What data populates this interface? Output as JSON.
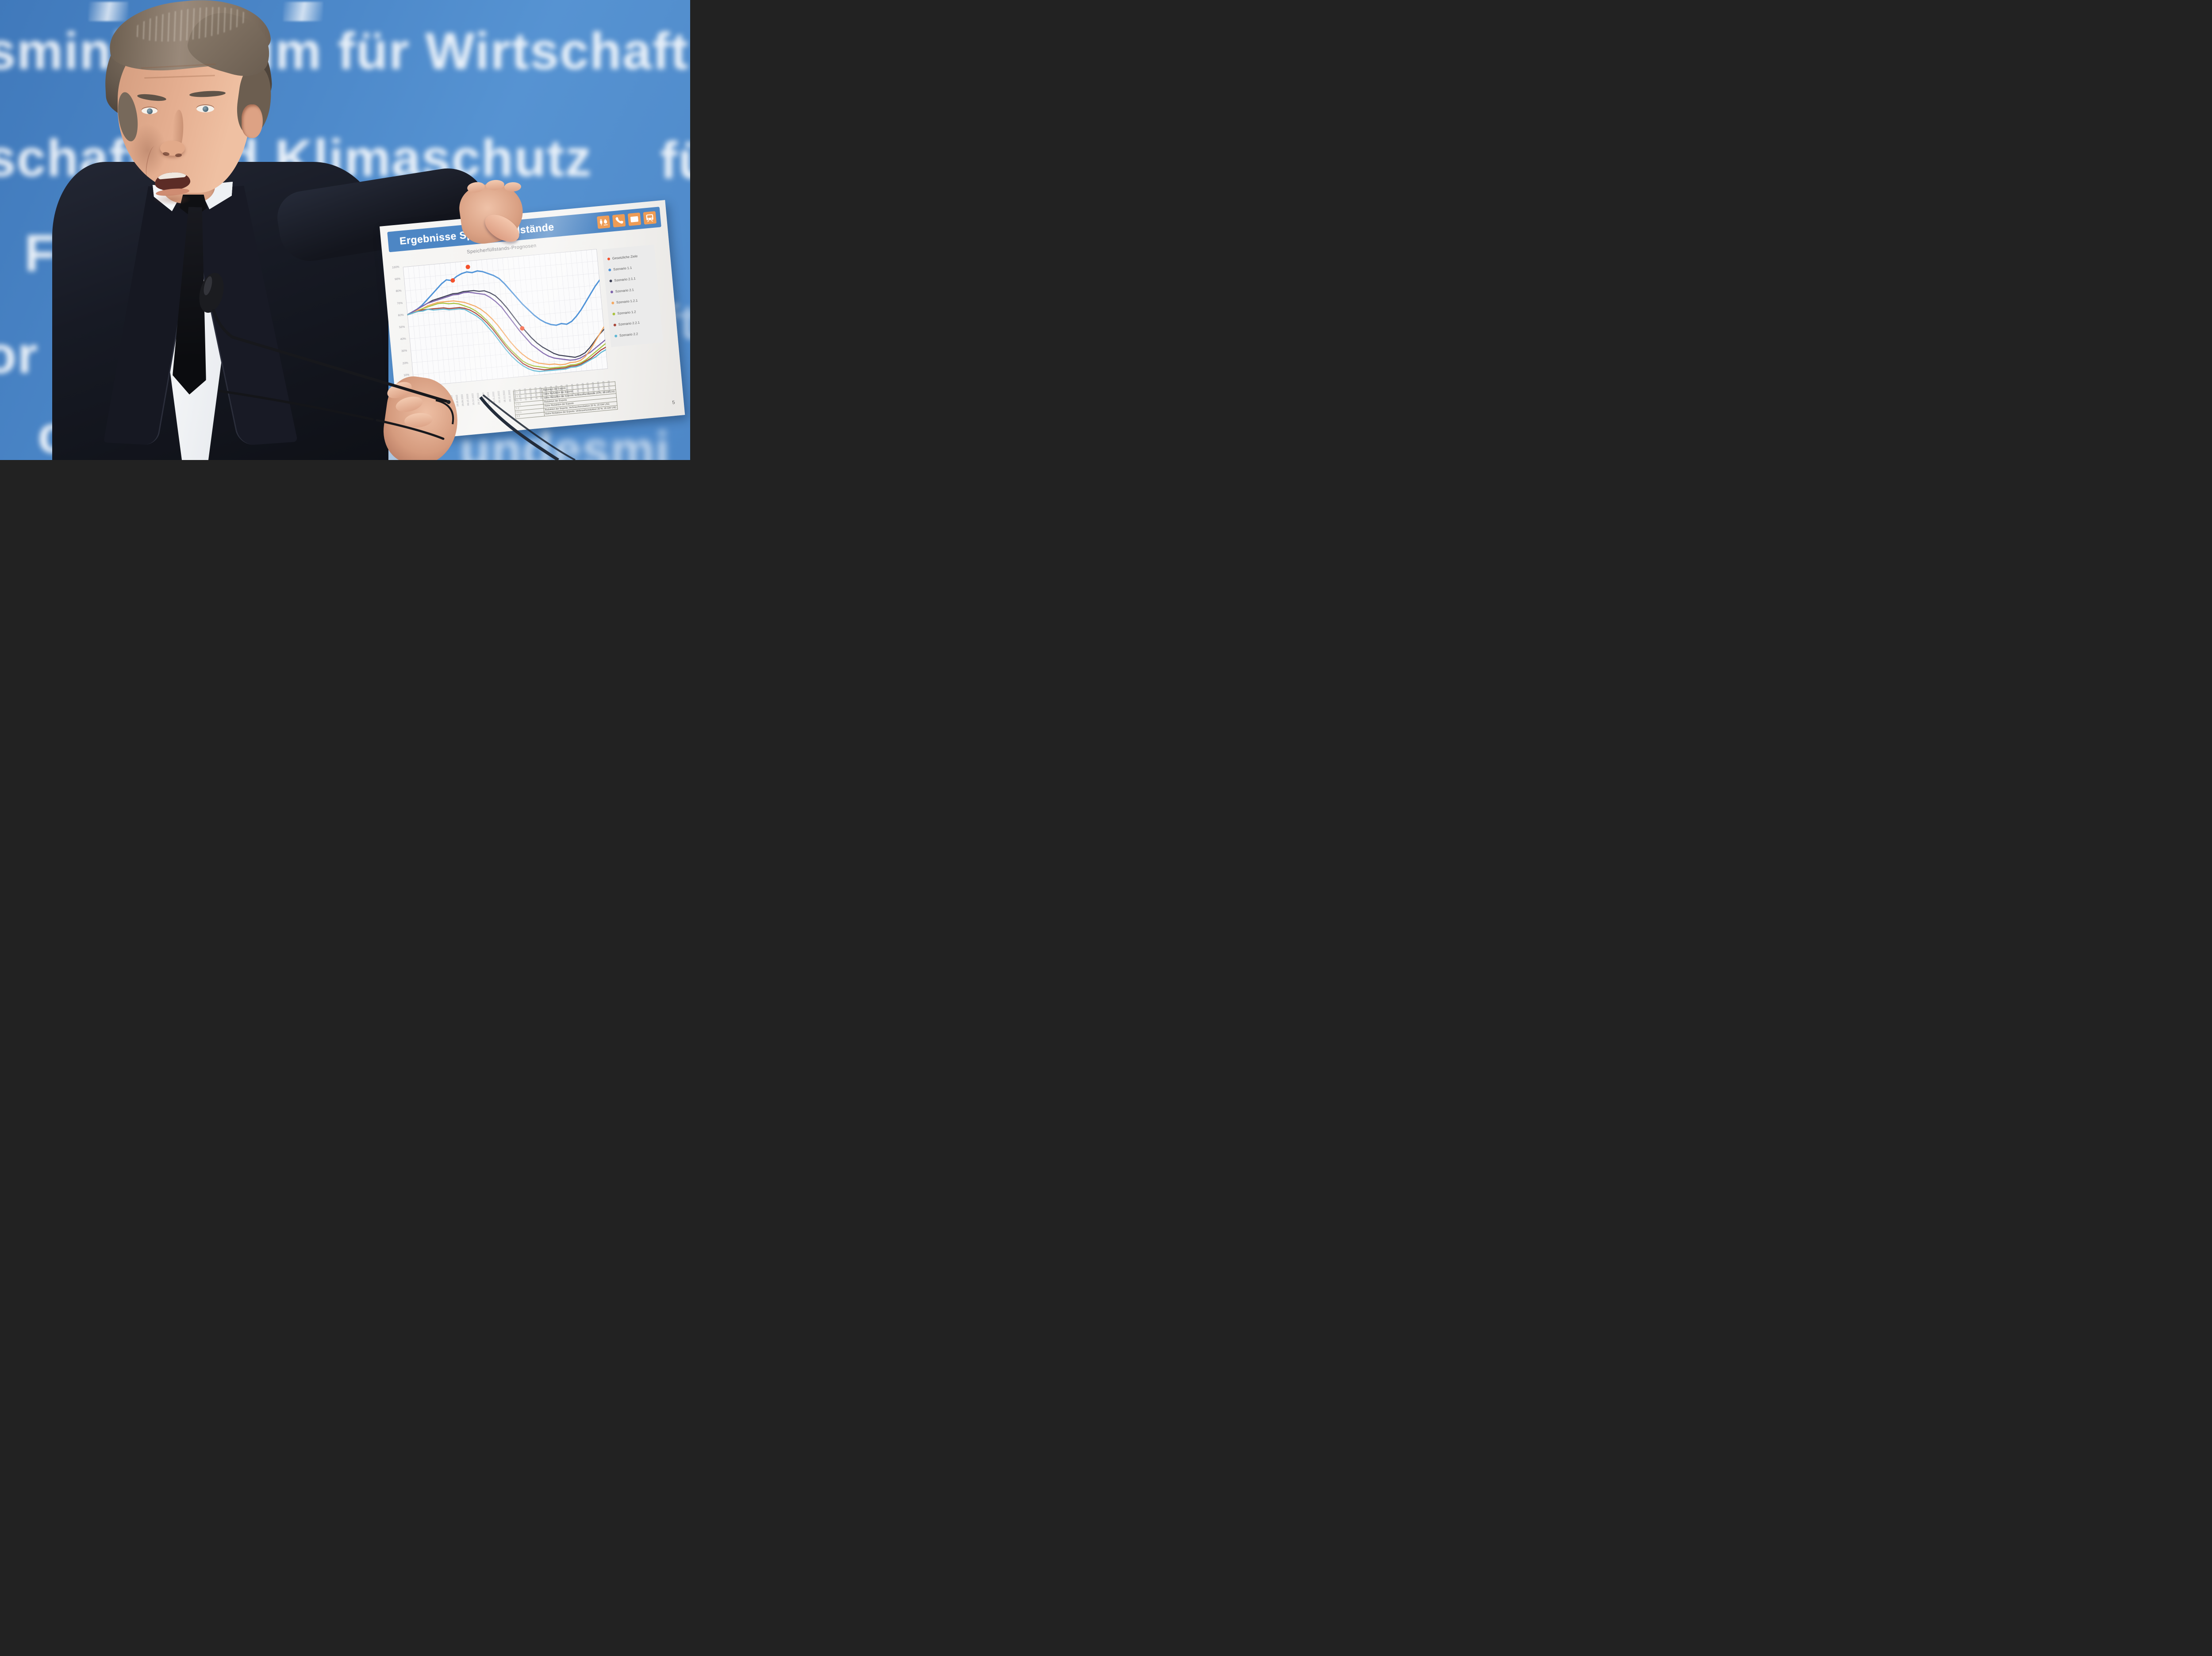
{
  "scene": {
    "backdrop_fragments": {
      "row1": "sministerium für Wirtschaft",
      "row2": "schaft und Klimaschutz",
      "row3": "Fe",
      "row4": "or",
      "row5": "ction",
      "right1": "für",
      "right2": "ft",
      "bottom_right": "undesmi"
    },
    "colors": {
      "wall_blue": "#4d89ca",
      "banner_blue": "#4d86c4",
      "icon_orange": "#ee9c55",
      "target_red": "#f4512c"
    }
  },
  "poster": {
    "title": "Ergebnisse Speicherfüllstände",
    "icons": [
      "plug-flame-icon",
      "phone-icon",
      "envelope-icon",
      "train-icon"
    ],
    "page_number": "5",
    "table": {
      "rows": [
        {
          "id": "1.1",
          "text": "Reduktion der Exporte"
        },
        {
          "id": "2.1.1",
          "text": "Keine Reduktion der Exporte"
        },
        {
          "id": "2.1",
          "text": "Keine Reduktion der Exporte; Verbrauchsreduktion 20 %; 16 GW LNG"
        },
        {
          "id": "1.2.1",
          "text": "Reduktion der Exporte"
        },
        {
          "id": "1.2",
          "text": "Keine Reduktion der Exporte"
        },
        {
          "id": "2.2.1",
          "text": "Reduktion der Exporte; Verbrauchsreduktion 20 %; 16 GW LNG"
        },
        {
          "id": "2.2",
          "text": "Keine Reduktion der Exporte; Verbrauchsreduktion 20 %; 16 GW LNG"
        }
      ]
    }
  },
  "chart_data": {
    "type": "line",
    "title": "Speicherfüllstands-Prognosen",
    "xlabel": "",
    "ylabel": "",
    "ylim": [
      0,
      100
    ],
    "grid": true,
    "legend_position": "right",
    "y_ticks": [
      "100%",
      "90%",
      "80%",
      "70%",
      "60%",
      "50%",
      "40%",
      "30%",
      "20%",
      "10%",
      "0%"
    ],
    "x": [
      "01.07.2022",
      "11.07.2022",
      "21.07.2022",
      "31.07.2022",
      "10.08.2022",
      "20.08.2022",
      "30.08.2022",
      "09.09.2022",
      "19.09.2022",
      "29.09.2022",
      "09.10.2022",
      "19.10.2022",
      "29.10.2022",
      "08.11.2022",
      "18.11.2022",
      "28.11.2022",
      "08.12.2022",
      "18.12.2022",
      "28.12.2022",
      "07.01.2023",
      "17.01.2023",
      "27.01.2023",
      "06.02.2023",
      "16.02.2023",
      "26.02.2023",
      "08.03.2023",
      "18.03.2023",
      "28.03.2023",
      "07.04.2023",
      "17.04.2023",
      "27.04.2023",
      "07.05.2023",
      "17.05.2023",
      "27.05.2023",
      "06.06.2023",
      "16.06.2023",
      "26.06.2023",
      "06.07.2023"
    ],
    "series": [
      {
        "name": "Szenario 1.1",
        "color": "#4f93d8",
        "width": 3,
        "values": [
          60,
          62,
          64,
          67,
          71,
          75,
          79,
          83,
          86,
          85,
          88,
          90,
          91,
          90,
          91,
          90,
          88,
          86,
          83,
          78,
          72,
          66,
          60,
          55,
          50,
          46,
          43,
          41,
          40,
          41,
          40,
          42,
          46,
          51,
          57,
          63,
          69,
          74
        ]
      },
      {
        "name": "Szenario 2.1.1",
        "color": "#3f4256",
        "width": 2.4,
        "values": [
          60,
          62,
          64,
          66,
          68,
          70,
          71,
          72,
          73,
          74,
          74,
          75,
          75,
          75,
          74,
          74,
          72,
          69,
          64,
          58,
          51,
          44,
          38,
          32,
          27,
          23,
          20,
          17,
          15,
          14,
          13,
          12,
          13,
          15,
          19,
          24,
          29,
          33
        ]
      },
      {
        "name": "Szenario 2.1",
        "color": "#7e64ab",
        "width": 2.4,
        "values": [
          60,
          62,
          64,
          66,
          68,
          69,
          70,
          71,
          72,
          73,
          73,
          74,
          74,
          73,
          72,
          71,
          68,
          64,
          59,
          52,
          45,
          38,
          32,
          26,
          22,
          18,
          15,
          13,
          12,
          11,
          10,
          10,
          11,
          13,
          15,
          18,
          21,
          24
        ]
      },
      {
        "name": "Szenario 1.2.1",
        "color": "#f5a963",
        "width": 2.4,
        "values": [
          60,
          61,
          63,
          64,
          66,
          67,
          68,
          68,
          68,
          68,
          67,
          66,
          64,
          62,
          59,
          55,
          50,
          44,
          37,
          30,
          24,
          19,
          15,
          12,
          10,
          9,
          8,
          8,
          7,
          7,
          8,
          8,
          9,
          12,
          17,
          23,
          29,
          35
        ]
      },
      {
        "name": "Szenario 1.2",
        "color": "#a9c23f",
        "width": 2.4,
        "values": [
          60,
          61,
          62,
          64,
          65,
          66,
          67,
          67,
          66,
          66,
          65,
          63,
          61,
          58,
          54,
          49,
          43,
          36,
          29,
          23,
          18,
          13,
          10,
          8,
          7,
          6,
          5,
          5,
          5,
          5,
          6,
          6,
          7,
          9,
          12,
          15,
          18,
          21
        ]
      },
      {
        "name": "Szenario 2.2.1",
        "color": "#a8473a",
        "width": 2.4,
        "values": [
          60,
          61,
          62,
          63,
          63,
          63,
          63,
          63,
          62,
          62,
          62,
          61,
          59,
          56,
          52,
          47,
          41,
          34,
          27,
          21,
          16,
          11,
          8,
          6,
          5,
          4,
          4,
          4,
          4,
          4,
          5,
          5,
          6,
          8,
          10,
          13,
          16,
          18
        ]
      },
      {
        "name": "Szenario 2.2",
        "color": "#5fb7d4",
        "width": 2.4,
        "values": [
          60,
          61,
          62,
          62,
          63,
          62,
          62,
          62,
          61,
          61,
          61,
          60,
          57,
          54,
          50,
          44,
          38,
          31,
          24,
          18,
          13,
          9,
          6,
          4,
          3,
          3,
          3,
          3,
          3,
          3,
          4,
          4,
          5,
          7,
          9,
          11,
          14,
          16
        ]
      }
    ],
    "targets": {
      "name": "Gesetzliche Ziele",
      "color": "#f4512c",
      "points": [
        [
          9.2,
          85
        ],
        [
          12.3,
          95
        ],
        [
          21.5,
          40
        ]
      ]
    }
  }
}
